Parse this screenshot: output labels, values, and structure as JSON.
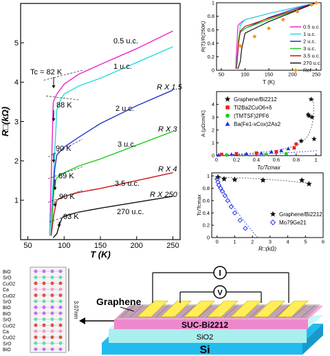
{
  "chart_data": [
    {
      "type": "line",
      "xlabel": "T (K)",
      "ylabel": "R□(kΩ)",
      "xlim": [
        40,
        260
      ],
      "ylim": [
        0,
        6
      ],
      "xticks": [
        50,
        100,
        150,
        200,
        250
      ],
      "yticks": [
        1,
        2,
        3,
        4,
        5
      ],
      "series": [
        {
          "name": "0.5 u.c.",
          "color": "#ee22cc",
          "x": [
            80,
            85,
            90,
            100,
            120,
            150,
            200,
            250
          ],
          "y": [
            0.1,
            3.5,
            3.7,
            3.95,
            4.2,
            4.45,
            4.85,
            5.3
          ]
        },
        {
          "name": "1 u.c.",
          "color": "#22dddd",
          "x": [
            80,
            85,
            90,
            95,
            100,
            120,
            150,
            200,
            250
          ],
          "y": [
            0.1,
            1.5,
            3.3,
            3.55,
            3.7,
            3.9,
            4.1,
            4.5,
            4.9
          ]
        },
        {
          "name": "2 u.c.",
          "color": "#2233cc",
          "x": [
            82,
            87,
            90,
            95,
            100,
            120,
            150,
            200,
            250
          ],
          "y": [
            0.1,
            1.8,
            2.15,
            2.25,
            2.35,
            2.6,
            2.95,
            3.4,
            3.8
          ]
        },
        {
          "name": "3 u.c.",
          "color": "#22cc22",
          "x": [
            82,
            86,
            89,
            95,
            100,
            120,
            150,
            200,
            250
          ],
          "y": [
            0.1,
            1.25,
            1.55,
            1.65,
            1.7,
            1.87,
            2.05,
            2.4,
            2.75
          ]
        },
        {
          "name": "3.5 u.c.",
          "color": "#cc1111",
          "x": [
            82,
            86,
            90,
            95,
            100,
            120,
            150,
            200,
            250
          ],
          "y": [
            0.1,
            0.65,
            1.0,
            1.05,
            1.1,
            1.2,
            1.3,
            1.5,
            1.7
          ]
        },
        {
          "name": "270 u.c.",
          "color": "#111111",
          "x": [
            85,
            90,
            93,
            97,
            100,
            120,
            150,
            200,
            250
          ],
          "y": [
            0.05,
            0.15,
            0.35,
            0.55,
            0.6,
            0.7,
            0.8,
            0.95,
            1.1
          ]
        }
      ],
      "labels": [
        "0.5 u.c.",
        "1 u.c.",
        "2 u.c.",
        "3 u.c.",
        "3.5 u.c.",
        "270 u.c.",
        "R X 1.5",
        "R X 3",
        "R X 4",
        "R X 250"
      ],
      "annotations": [
        "Tc = 82 K",
        "88 K",
        "90 K",
        "89 K",
        "90 K",
        "93 K"
      ]
    },
    {
      "type": "line",
      "xlabel": "T (K)",
      "ylabel": "R(T)/R(250K)",
      "xlim": [
        40,
        260
      ],
      "ylim": [
        0,
        1
      ],
      "xticks": [
        50,
        100,
        150,
        200,
        250
      ],
      "yticks": [
        0.0,
        0.2,
        0.4,
        0.6,
        0.8,
        1.0
      ],
      "legend": [
        "0.5 u.c.",
        "1 u.c.",
        "2 u.c.",
        "3 u.c.",
        "3.5 u.c.",
        "270 u.c.",
        "Ref"
      ],
      "series": [
        {
          "name": "0.5 u.c.",
          "color": "#ee22cc",
          "x": [
            80,
            85,
            90,
            100,
            150,
            200,
            250
          ],
          "y": [
            0.02,
            0.66,
            0.7,
            0.75,
            0.84,
            0.92,
            1.0
          ]
        },
        {
          "name": "1 u.c.",
          "color": "#22dddd",
          "x": [
            80,
            85,
            90,
            100,
            150,
            200,
            250
          ],
          "y": [
            0.02,
            0.3,
            0.67,
            0.75,
            0.84,
            0.92,
            1.0
          ]
        },
        {
          "name": "2 u.c.",
          "color": "#2233cc",
          "x": [
            82,
            87,
            90,
            100,
            150,
            200,
            250
          ],
          "y": [
            0.02,
            0.47,
            0.56,
            0.62,
            0.78,
            0.9,
            1.0
          ]
        },
        {
          "name": "3 u.c.",
          "color": "#22cc22",
          "x": [
            82,
            86,
            89,
            100,
            150,
            200,
            250
          ],
          "y": [
            0.02,
            0.45,
            0.56,
            0.62,
            0.75,
            0.87,
            1.0
          ]
        },
        {
          "name": "3.5 u.c.",
          "color": "#cc1111",
          "x": [
            82,
            86,
            90,
            100,
            150,
            200,
            250
          ],
          "y": [
            0.02,
            0.38,
            0.58,
            0.65,
            0.77,
            0.88,
            1.0
          ]
        },
        {
          "name": "270 u.c.",
          "color": "#111111",
          "x": [
            85,
            90,
            93,
            100,
            150,
            200,
            250
          ],
          "y": [
            0.02,
            0.13,
            0.32,
            0.55,
            0.72,
            0.86,
            1.0
          ]
        },
        {
          "name": "Ref",
          "color": "#ee9922",
          "x": [
            90,
            120,
            150,
            180,
            210,
            240,
            250
          ],
          "y": [
            0.36,
            0.5,
            0.62,
            0.75,
            0.87,
            0.97,
            1.0
          ]
        }
      ]
    },
    {
      "type": "scatter",
      "xlabel": "Tc/Tcmax",
      "ylabel": "A (μΩcm/K)",
      "xlim": [
        0.0,
        1.05
      ],
      "ylim": [
        0,
        5
      ],
      "xticks": [
        0.0,
        0.2,
        0.4,
        0.6,
        0.8,
        1.0
      ],
      "yticks": [
        0,
        1,
        2,
        3,
        4
      ],
      "legend": [
        "Graphene/Bi2212",
        "Tl2Ba2CuO6+δ",
        "(TMTSF)2PF6",
        "Ba(Fe1-xCox)2As2"
      ],
      "series": [
        {
          "name": "Graphene/Bi2212",
          "marker": "star",
          "color": "#111111",
          "x": [
            0.85,
            0.92,
            0.93,
            0.95,
            0.96,
            0.98
          ],
          "y": [
            1.15,
            3.2,
            3.1,
            4.4,
            3.0,
            1.3
          ]
        },
        {
          "name": "Tl2Ba2CuO6+δ",
          "marker": "square",
          "color": "#ee2222",
          "x": [
            0.05,
            0.2,
            0.4,
            0.6,
            0.78,
            0.8
          ],
          "y": [
            0.1,
            0.15,
            0.2,
            0.3,
            0.6,
            0.9
          ]
        },
        {
          "name": "(TMTSF)2PF6",
          "marker": "circle",
          "color": "#22cc22",
          "x": [
            0.1,
            0.3,
            0.5,
            0.7
          ],
          "y": [
            0.05,
            0.08,
            0.1,
            0.15
          ]
        },
        {
          "name": "Ba(Fe1-xCox)2As2",
          "marker": "triangle",
          "color": "#2233ee",
          "x": [
            0.02,
            0.15,
            0.3,
            0.45,
            0.55,
            0.65,
            0.72
          ],
          "y": [
            0.05,
            0.1,
            0.15,
            0.2,
            0.3,
            0.4,
            0.55
          ]
        }
      ]
    },
    {
      "type": "scatter",
      "xlabel": "R□(kΩ)",
      "ylabel": "Tc/Tcmax",
      "xlim": [
        -0.3,
        6
      ],
      "ylim": [
        0,
        1.05
      ],
      "xticks": [
        0,
        1,
        2,
        3,
        4,
        5,
        6
      ],
      "yticks": [
        0.0,
        0.2,
        0.4,
        0.6,
        0.8,
        1.0
      ],
      "legend": [
        "Graphene/Bi2212",
        "Mo79Ge21"
      ],
      "series": [
        {
          "name": "Graphene/Bi2212",
          "marker": "star",
          "color": "#111111",
          "x": [
            0.05,
            0.4,
            1.0,
            2.6,
            4.8,
            5.2
          ],
          "y": [
            0.98,
            0.95,
            0.94,
            0.93,
            0.93,
            0.87
          ]
        },
        {
          "name": "Mo79Ge21",
          "marker": "diamond",
          "color": "#2233ee",
          "x": [
            0.0,
            0.05,
            0.1,
            0.2,
            0.3,
            0.45,
            0.6,
            0.8,
            1.0,
            1.3,
            1.6
          ],
          "y": [
            0.95,
            0.9,
            0.85,
            0.8,
            0.75,
            0.68,
            0.6,
            0.5,
            0.4,
            0.28,
            0.15
          ]
        }
      ]
    }
  ],
  "schematic": {
    "stack_layers": [
      "BiO",
      "SrO",
      "CuO2",
      "Ca",
      "CuO2",
      "SrO",
      "BiO",
      "BiO",
      "SrO",
      "CuO2",
      "Ca",
      "CuO2",
      "SrO",
      "BiO"
    ],
    "c_axis_label": "3.07nm",
    "label_graphene": "Graphene",
    "label_current": "I",
    "label_voltage": "V",
    "label_suc": "SUC-Bi2212",
    "label_sio2": "SiO2",
    "label_si": "Si",
    "colors": {
      "si": "#22bbee",
      "sio2": "#aaeeee",
      "suc": "#ee88cc",
      "electrode": "#ffee55",
      "graphene": "#777777"
    }
  }
}
